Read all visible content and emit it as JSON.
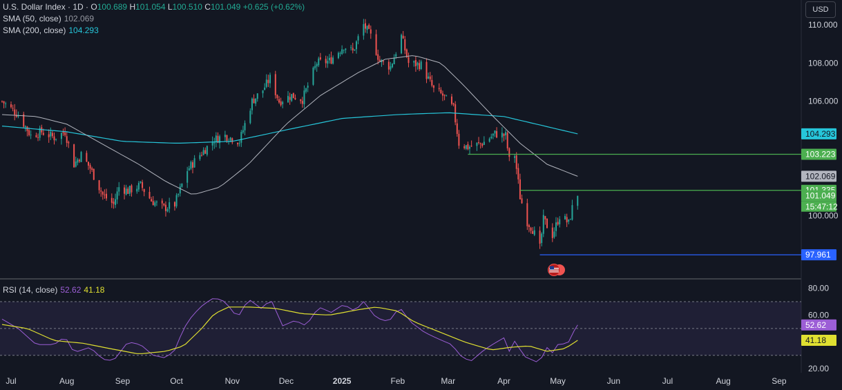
{
  "header": {
    "symbol": "U.S. Dollar Index · 1D · ",
    "o_label": "O",
    "o": "100.689",
    "h_label": "H",
    "h": "101.054",
    "l_label": "L",
    "l": "100.510",
    "c_label": "C",
    "c": "101.049",
    "change": "+0.625 (+0.62%)",
    "sma50_label": "SMA (50, close)",
    "sma50_value": "102.069",
    "sma200_label": "SMA (200, close)",
    "sma200_value": "104.293",
    "currency": "USD",
    "rsi_label": "RSI (14, close)",
    "rsi_value": "52.62",
    "rsi_ma_value": "41.18"
  },
  "colors": {
    "background": "#131722",
    "up": "#26a69a",
    "down": "#ef5350",
    "sma50": "#9598a1",
    "sma200": "#26c6da",
    "green_level": "#4caf50",
    "blue_level": "#2962ff",
    "rsi": "#9c5ed6",
    "rsi_ma": "#e0e031"
  },
  "chart_data": [
    {
      "type": "candlestick",
      "title": "U.S. Dollar Index · 1D",
      "ylim": [
        96.7,
        111.3
      ],
      "y_ticks": [
        "110.000",
        "108.000",
        "106.000",
        "100.000"
      ],
      "x_ticks": [
        "Jul",
        "Aug",
        "Sep",
        "Oct",
        "Nov",
        "Dec",
        "2025",
        "Feb",
        "Mar",
        "Apr",
        "May",
        "Jun",
        "Jul",
        "Aug",
        "Sep"
      ],
      "x_tick_dates": [
        "2024-07-01",
        "2024-08-01",
        "2024-09-01",
        "2024-10-01",
        "2024-11-01",
        "2024-12-01",
        "2025-01-01",
        "2025-02-01",
        "2025-03-01",
        "2025-04-01",
        "2025-05-01",
        "2025-06-01",
        "2025-07-01",
        "2025-08-01",
        "2025-09-01"
      ],
      "last_close": 101.049,
      "countdown": "15:47:12",
      "price_anchors": [
        [
          "2024-06-26",
          106.0
        ],
        [
          "2024-07-05",
          105.3
        ],
        [
          "2024-07-12",
          104.2
        ],
        [
          "2024-07-18",
          104.4
        ],
        [
          "2024-07-25",
          104.1
        ],
        [
          "2024-07-31",
          104.4
        ],
        [
          "2024-08-05",
          102.7
        ],
        [
          "2024-08-09",
          103.2
        ],
        [
          "2024-08-14",
          102.5
        ],
        [
          "2024-08-21",
          101.1
        ],
        [
          "2024-08-27",
          100.6
        ],
        [
          "2024-08-30",
          101.5
        ],
        [
          "2024-09-04",
          101.3
        ],
        [
          "2024-09-11",
          101.6
        ],
        [
          "2024-09-17",
          100.8
        ],
        [
          "2024-09-24",
          100.4
        ],
        [
          "2024-09-30",
          100.6
        ],
        [
          "2024-10-07",
          102.4
        ],
        [
          "2024-10-14",
          103.2
        ],
        [
          "2024-10-22",
          104.0
        ],
        [
          "2024-10-28",
          104.2
        ],
        [
          "2024-11-05",
          103.9
        ],
        [
          "2024-11-12",
          106.0
        ],
        [
          "2024-11-18",
          106.6
        ],
        [
          "2024-11-22",
          107.2
        ],
        [
          "2024-11-27",
          106.0
        ],
        [
          "2024-12-04",
          106.3
        ],
        [
          "2024-12-10",
          106.1
        ],
        [
          "2024-12-18",
          108.0
        ],
        [
          "2024-12-25",
          108.1
        ],
        [
          "2025-01-02",
          108.9
        ],
        [
          "2025-01-07",
          108.6
        ],
        [
          "2025-01-13",
          110.0
        ],
        [
          "2025-01-17",
          109.4
        ],
        [
          "2025-01-22",
          108.1
        ],
        [
          "2025-01-28",
          107.8
        ],
        [
          "2025-02-03",
          109.4
        ],
        [
          "2025-02-07",
          108.0
        ],
        [
          "2025-02-14",
          107.9
        ],
        [
          "2025-02-21",
          106.6
        ],
        [
          "2025-02-26",
          106.3
        ],
        [
          "2025-03-04",
          105.6
        ],
        [
          "2025-03-07",
          103.8
        ],
        [
          "2025-03-12",
          103.6
        ],
        [
          "2025-03-20",
          103.8
        ],
        [
          "2025-03-27",
          104.3
        ],
        [
          "2025-04-02",
          104.2
        ],
        [
          "2025-04-04",
          102.9
        ],
        [
          "2025-04-07",
          103.2
        ],
        [
          "2025-04-10",
          101.0
        ],
        [
          "2025-04-14",
          99.7
        ],
        [
          "2025-04-17",
          99.3
        ],
        [
          "2025-04-21",
          98.3
        ],
        [
          "2025-04-23",
          99.8
        ],
        [
          "2025-04-28",
          99.0
        ],
        [
          "2025-05-02",
          100.0
        ],
        [
          "2025-05-05",
          99.8
        ],
        [
          "2025-05-07",
          99.6
        ],
        [
          "2025-05-09",
          100.4
        ],
        [
          "2025-05-12",
          101.049
        ]
      ],
      "sma50": [
        [
          "2024-06-26",
          105.3
        ],
        [
          "2024-07-15",
          105.2
        ],
        [
          "2024-08-01",
          104.8
        ],
        [
          "2024-08-20",
          103.8
        ],
        [
          "2024-09-10",
          102.7
        ],
        [
          "2024-09-25",
          101.8
        ],
        [
          "2024-10-10",
          101.1
        ],
        [
          "2024-10-25",
          101.5
        ],
        [
          "2024-11-10",
          102.7
        ],
        [
          "2024-12-01",
          104.8
        ],
        [
          "2024-12-20",
          106.3
        ],
        [
          "2025-01-10",
          107.5
        ],
        [
          "2025-01-25",
          108.2
        ],
        [
          "2025-02-10",
          108.4
        ],
        [
          "2025-02-25",
          108.0
        ],
        [
          "2025-03-10",
          106.8
        ],
        [
          "2025-03-25",
          105.3
        ],
        [
          "2025-04-10",
          103.8
        ],
        [
          "2025-04-25",
          102.7
        ],
        [
          "2025-05-12",
          102.069
        ]
      ],
      "sma200": [
        [
          "2024-06-26",
          104.7
        ],
        [
          "2024-08-01",
          104.4
        ],
        [
          "2024-09-01",
          103.9
        ],
        [
          "2024-10-01",
          103.8
        ],
        [
          "2024-11-01",
          103.9
        ],
        [
          "2024-12-01",
          104.5
        ],
        [
          "2025-01-01",
          105.1
        ],
        [
          "2025-02-01",
          105.3
        ],
        [
          "2025-03-01",
          105.4
        ],
        [
          "2025-04-01",
          105.2
        ],
        [
          "2025-05-12",
          104.293
        ]
      ],
      "levels": [
        {
          "value": 103.223,
          "color": "#4caf50",
          "start": "2025-03-12"
        },
        {
          "value": 101.335,
          "color": "#4caf50",
          "start": "2025-04-10"
        },
        {
          "value": 97.961,
          "color": "#2962ff",
          "start": "2025-04-21"
        }
      ],
      "price_labels": [
        {
          "text": "104.293",
          "value": 104.293,
          "bg": "#26c6da",
          "fg": "#131722"
        },
        {
          "text": "103.223",
          "value": 103.223,
          "bg": "#4caf50",
          "fg": "#ffffff"
        },
        {
          "text": "102.069",
          "value": 102.069,
          "bg": "#b2b5be",
          "fg": "#131722"
        },
        {
          "text": "101.335",
          "value": 101.335,
          "bg": "#4caf50",
          "fg": "#ffffff"
        },
        {
          "text": "101.049",
          "value": 101.049,
          "bg": "#4caf50",
          "fg": "#ffffff"
        },
        {
          "text": "97.961",
          "value": 97.961,
          "bg": "#2962ff",
          "fg": "#ffffff"
        }
      ]
    },
    {
      "type": "line",
      "title": "RSI (14, close)",
      "ylim": [
        17,
        87
      ],
      "y_ticks": [
        "80.00",
        "60.00",
        "20.00"
      ],
      "band": [
        30,
        70
      ],
      "midline": 50,
      "rsi_anchors": [
        [
          "2024-06-26",
          57
        ],
        [
          "2024-07-05",
          50
        ],
        [
          "2024-07-15",
          38
        ],
        [
          "2024-07-25",
          38
        ],
        [
          "2024-07-31",
          44
        ],
        [
          "2024-08-05",
          32
        ],
        [
          "2024-08-14",
          36
        ],
        [
          "2024-08-21",
          27
        ],
        [
          "2024-08-27",
          26
        ],
        [
          "2024-09-04",
          40
        ],
        [
          "2024-09-11",
          38
        ],
        [
          "2024-09-18",
          30
        ],
        [
          "2024-09-25",
          28
        ],
        [
          "2024-09-30",
          34
        ],
        [
          "2024-10-05",
          50
        ],
        [
          "2024-10-10",
          60
        ],
        [
          "2024-10-16",
          68
        ],
        [
          "2024-10-22",
          73
        ],
        [
          "2024-10-28",
          70
        ],
        [
          "2024-11-04",
          58
        ],
        [
          "2024-11-10",
          72
        ],
        [
          "2024-11-18",
          64
        ],
        [
          "2024-11-22",
          73
        ],
        [
          "2024-11-29",
          52
        ],
        [
          "2024-12-06",
          56
        ],
        [
          "2024-12-12",
          52
        ],
        [
          "2024-12-19",
          66
        ],
        [
          "2024-12-26",
          62
        ],
        [
          "2025-01-02",
          68
        ],
        [
          "2025-01-08",
          63
        ],
        [
          "2025-01-13",
          70
        ],
        [
          "2025-01-20",
          58
        ],
        [
          "2025-01-27",
          55
        ],
        [
          "2025-02-02",
          66
        ],
        [
          "2025-02-08",
          55
        ],
        [
          "2025-02-16",
          47
        ],
        [
          "2025-02-24",
          42
        ],
        [
          "2025-03-03",
          38
        ],
        [
          "2025-03-09",
          28
        ],
        [
          "2025-03-14",
          26
        ],
        [
          "2025-03-21",
          34
        ],
        [
          "2025-03-28",
          40
        ],
        [
          "2025-04-01",
          43
        ],
        [
          "2025-04-04",
          33
        ],
        [
          "2025-04-08",
          43
        ],
        [
          "2025-04-11",
          30
        ],
        [
          "2025-04-16",
          27
        ],
        [
          "2025-04-21",
          24
        ],
        [
          "2025-04-24",
          37
        ],
        [
          "2025-04-28",
          32
        ],
        [
          "2025-05-02",
          40
        ],
        [
          "2025-05-06",
          37
        ],
        [
          "2025-05-09",
          46
        ],
        [
          "2025-05-12",
          52.62
        ]
      ],
      "rsi_ma": [
        [
          "2024-06-26",
          53
        ],
        [
          "2024-07-10",
          50
        ],
        [
          "2024-07-25",
          41
        ],
        [
          "2024-08-10",
          39
        ],
        [
          "2024-08-25",
          35
        ],
        [
          "2024-09-10",
          31
        ],
        [
          "2024-09-25",
          33
        ],
        [
          "2024-10-05",
          37
        ],
        [
          "2024-10-15",
          50
        ],
        [
          "2024-10-22",
          61
        ],
        [
          "2024-10-30",
          66
        ],
        [
          "2024-11-10",
          66
        ],
        [
          "2024-11-25",
          65
        ],
        [
          "2024-12-10",
          61
        ],
        [
          "2024-12-25",
          60
        ],
        [
          "2025-01-10",
          64
        ],
        [
          "2025-01-20",
          66
        ],
        [
          "2025-02-01",
          63
        ],
        [
          "2025-02-10",
          55
        ],
        [
          "2025-02-25",
          47
        ],
        [
          "2025-03-10",
          40
        ],
        [
          "2025-03-25",
          34
        ],
        [
          "2025-04-05",
          36
        ],
        [
          "2025-04-15",
          37
        ],
        [
          "2025-04-25",
          33
        ],
        [
          "2025-05-05",
          35
        ],
        [
          "2025-05-12",
          41.18
        ]
      ],
      "price_labels": [
        {
          "text": "52.62",
          "value": 52.62,
          "bg": "#9c5ed6",
          "fg": "#ffffff"
        },
        {
          "text": "41.18",
          "value": 41.18,
          "bg": "#e0e031",
          "fg": "#131722"
        }
      ]
    }
  ]
}
